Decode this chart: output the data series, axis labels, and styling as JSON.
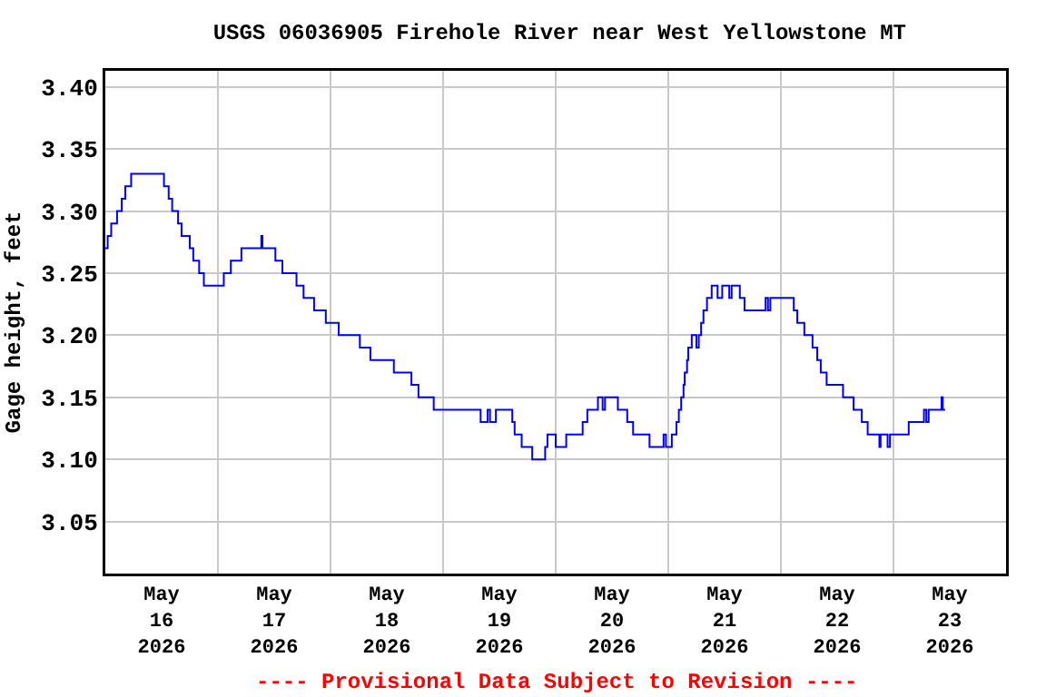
{
  "chart_data": {
    "type": "step",
    "title": "USGS 06036905 Firehole River near West Yellowstone MT",
    "ylabel": "Gage height, feet",
    "annotations": [
      "---- Provisional Data Subject to Revision ----"
    ],
    "x": [
      "2026-05-16T00:00",
      "2026-05-16T00:30",
      "2026-05-16T01:15",
      "2026-05-16T02:30",
      "2026-05-16T03:30",
      "2026-05-16T04:15",
      "2026-05-16T05:30",
      "2026-05-16T12:30",
      "2026-05-16T13:30",
      "2026-05-16T14:15",
      "2026-05-16T15:30",
      "2026-05-16T16:15",
      "2026-05-16T18:00",
      "2026-05-16T18:45",
      "2026-05-16T20:00",
      "2026-05-16T21:00",
      "2026-05-17T01:15",
      "2026-05-17T02:45",
      "2026-05-17T05:00",
      "2026-05-17T09:15",
      "2026-05-17T09:30",
      "2026-05-17T12:15",
      "2026-05-17T13:45",
      "2026-05-17T16:45",
      "2026-05-17T18:15",
      "2026-05-17T20:30",
      "2026-05-17T23:00",
      "2026-05-18T01:45",
      "2026-05-18T06:15",
      "2026-05-18T08:30",
      "2026-05-18T13:30",
      "2026-05-18T17:15",
      "2026-05-18T18:45",
      "2026-05-18T22:00",
      "2026-05-19T08:00",
      "2026-05-19T09:30",
      "2026-05-19T10:00",
      "2026-05-19T11:15",
      "2026-05-19T14:45",
      "2026-05-19T15:15",
      "2026-05-19T16:45",
      "2026-05-19T19:00",
      "2026-05-19T21:45",
      "2026-05-19T22:15",
      "2026-05-20T00:00",
      "2026-05-20T02:15",
      "2026-05-20T05:45",
      "2026-05-20T06:45",
      "2026-05-20T09:00",
      "2026-05-20T10:00",
      "2026-05-20T10:30",
      "2026-05-20T13:15",
      "2026-05-20T15:15",
      "2026-05-20T16:30",
      "2026-05-20T20:00",
      "2026-05-20T23:00",
      "2026-05-20T23:30",
      "2026-05-21T00:45",
      "2026-05-21T01:45",
      "2026-05-21T02:15",
      "2026-05-21T02:45",
      "2026-05-21T03:15",
      "2026-05-21T03:30",
      "2026-05-21T04:00",
      "2026-05-21T04:15",
      "2026-05-21T05:00",
      "2026-05-21T06:00",
      "2026-05-21T06:30",
      "2026-05-21T07:00",
      "2026-05-21T07:30",
      "2026-05-21T08:15",
      "2026-05-21T09:15",
      "2026-05-21T10:30",
      "2026-05-21T11:30",
      "2026-05-21T13:00",
      "2026-05-21T13:30",
      "2026-05-21T15:15",
      "2026-05-21T16:15",
      "2026-05-21T20:45",
      "2026-05-21T21:15",
      "2026-05-21T21:45",
      "2026-05-22T02:45",
      "2026-05-22T03:30",
      "2026-05-22T05:00",
      "2026-05-22T06:45",
      "2026-05-22T07:45",
      "2026-05-22T08:30",
      "2026-05-22T09:45",
      "2026-05-22T13:15",
      "2026-05-22T15:30",
      "2026-05-22T17:15",
      "2026-05-22T18:30",
      "2026-05-22T21:00",
      "2026-05-22T21:15",
      "2026-05-22T22:45",
      "2026-05-22T23:15",
      "2026-05-23T03:15",
      "2026-05-23T06:30",
      "2026-05-23T07:00",
      "2026-05-23T07:30",
      "2026-05-23T10:15",
      "2026-05-23T10:30",
      "2026-05-23T11:00"
    ],
    "series": [
      {
        "color": "#0000ff",
        "values": [
          3.27,
          3.28,
          3.29,
          3.3,
          3.31,
          3.32,
          3.33,
          3.32,
          3.31,
          3.3,
          3.29,
          3.28,
          3.27,
          3.26,
          3.25,
          3.24,
          3.25,
          3.26,
          3.27,
          3.28,
          3.27,
          3.26,
          3.25,
          3.24,
          3.23,
          3.22,
          3.21,
          3.2,
          3.19,
          3.18,
          3.17,
          3.16,
          3.15,
          3.14,
          3.13,
          3.14,
          3.13,
          3.14,
          3.13,
          3.12,
          3.11,
          3.1,
          3.11,
          3.12,
          3.11,
          3.12,
          3.13,
          3.14,
          3.15,
          3.14,
          3.15,
          3.14,
          3.13,
          3.12,
          3.11,
          3.12,
          3.11,
          3.12,
          3.13,
          3.14,
          3.15,
          3.16,
          3.17,
          3.18,
          3.19,
          3.2,
          3.19,
          3.2,
          3.21,
          3.22,
          3.23,
          3.24,
          3.23,
          3.24,
          3.23,
          3.24,
          3.23,
          3.22,
          3.23,
          3.22,
          3.23,
          3.22,
          3.21,
          3.2,
          3.19,
          3.18,
          3.17,
          3.16,
          3.15,
          3.14,
          3.13,
          3.12,
          3.11,
          3.12,
          3.11,
          3.12,
          3.13,
          3.14,
          3.13,
          3.14,
          3.15,
          3.14,
          3.14
        ]
      }
    ],
    "xlim": [
      "2026-05-16T00:00",
      "2026-05-24T00:00"
    ],
    "xticks": [
      {
        "value": "2026-05-16T12:00",
        "label": "May\n16\n2026"
      },
      {
        "value": "2026-05-17T00:00",
        "label": null
      },
      {
        "value": "2026-05-17T12:00",
        "label": "May\n17\n2026"
      },
      {
        "value": "2026-05-18T00:00",
        "label": null
      },
      {
        "value": "2026-05-18T12:00",
        "label": "May\n18\n2026"
      },
      {
        "value": "2026-05-19T00:00",
        "label": null
      },
      {
        "value": "2026-05-19T12:00",
        "label": "May\n19\n2026"
      },
      {
        "value": "2026-05-20T00:00",
        "label": null
      },
      {
        "value": "2026-05-20T12:00",
        "label": "May\n20\n2026"
      },
      {
        "value": "2026-05-21T00:00",
        "label": null
      },
      {
        "value": "2026-05-21T12:00",
        "label": "May\n21\n2026"
      },
      {
        "value": "2026-05-22T00:00",
        "label": null
      },
      {
        "value": "2026-05-22T12:00",
        "label": "May\n22\n2026"
      },
      {
        "value": "2026-05-23T00:00",
        "label": null
      },
      {
        "value": "2026-05-23T12:00",
        "label": "May\n23\n2026"
      }
    ],
    "ylim": [
      3.008,
      3.413
    ],
    "yticks": [
      3.05,
      {
        "value": 3.1,
        "label": "3.10"
      },
      3.15,
      {
        "value": 3.2,
        "label": "3.20"
      },
      3.25,
      {
        "value": 3.3,
        "label": "3.30"
      },
      3.35,
      {
        "value": 3.4,
        "label": "3.40"
      }
    ],
    "grid": true,
    "marker": "none",
    "line_style": "solid"
  }
}
